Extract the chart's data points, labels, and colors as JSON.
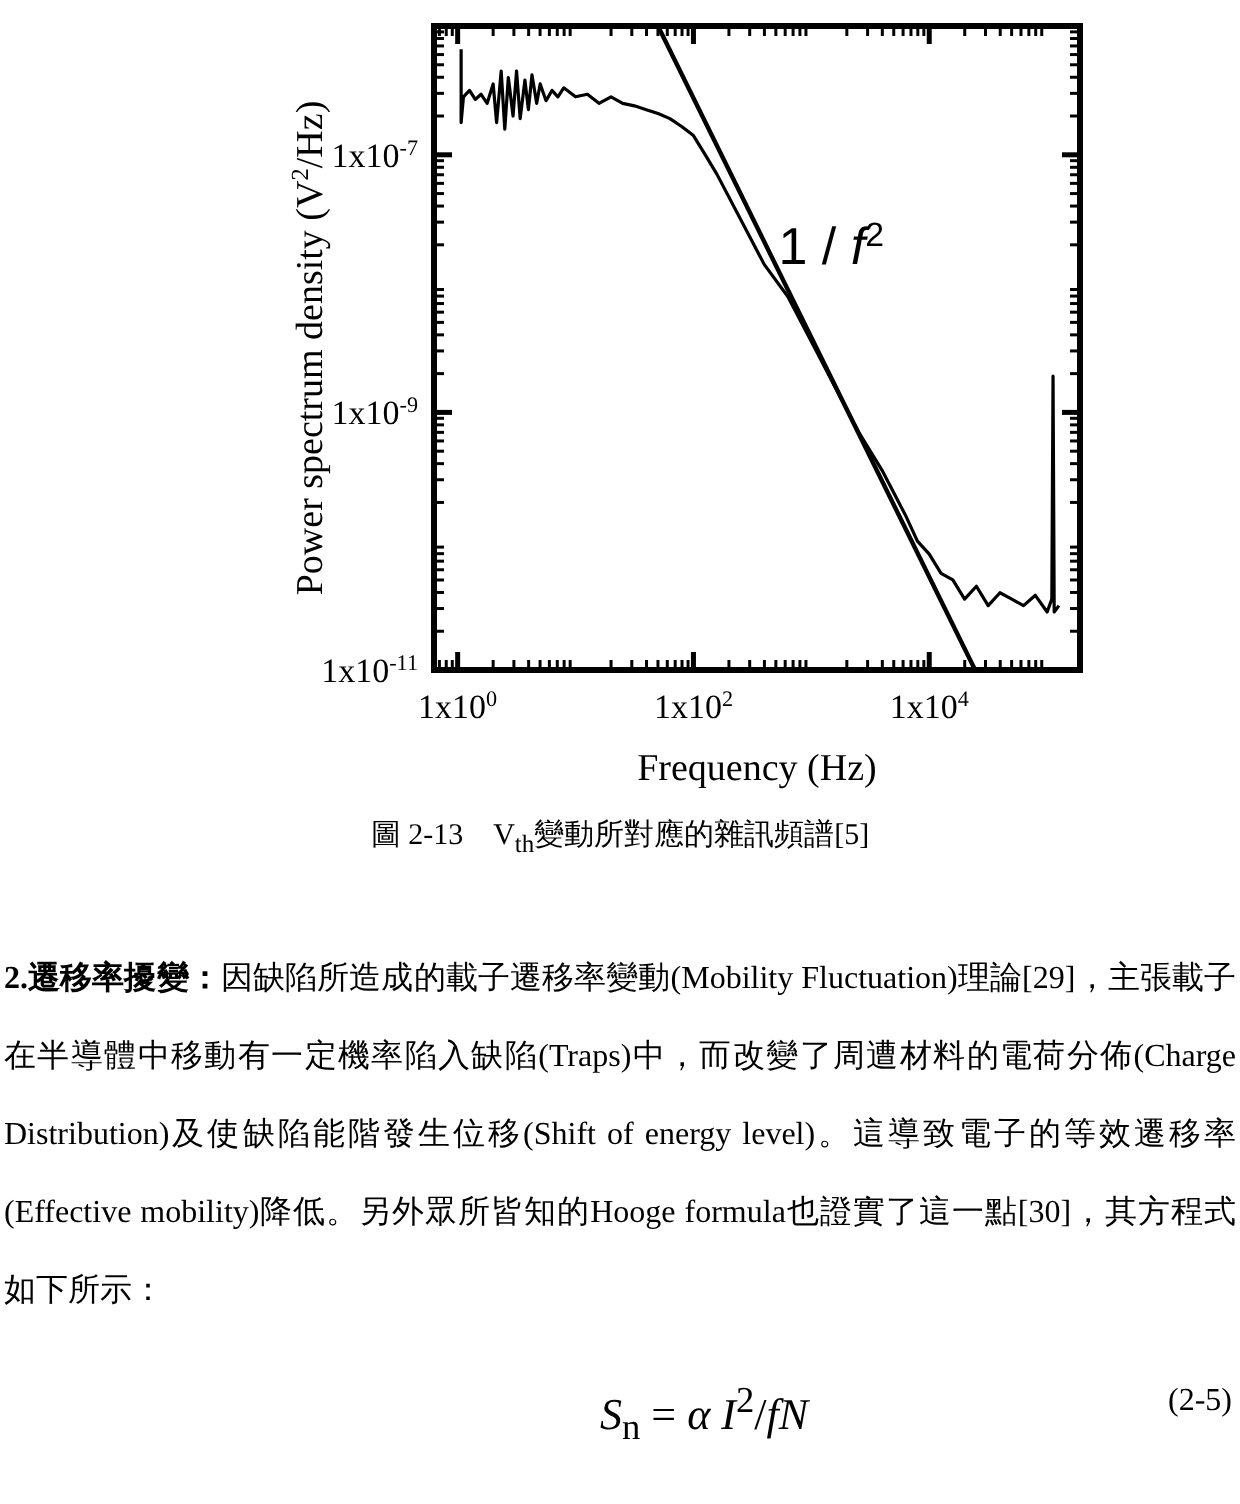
{
  "chart_data": {
    "type": "line",
    "xlabel": "Frequency (Hz)",
    "ylabel": "Power spectrum density (V$^{2}$/Hz)",
    "log": "xy",
    "xlim": [
      0.63,
      190000
    ],
    "ylim": [
      1e-11,
      1e-06
    ],
    "xticks": [
      {
        "value": 1,
        "label": "1x10$^{0}$"
      },
      {
        "value": 100,
        "label": "1x10$^{2}$"
      },
      {
        "value": 10000,
        "label": "1x10$^{4}$"
      }
    ],
    "yticks": [
      {
        "value": 1e-11,
        "label": "1x10$^{-11}$"
      },
      {
        "value": 1e-09,
        "label": "1x10$^{-9}$"
      },
      {
        "value": 1e-07,
        "label": "1x10$^{-7}$"
      }
    ],
    "series": [
      {
        "color": "#000000",
        "x": [
          1.07,
          1.07,
          1.12,
          1.26,
          1.41,
          1.58,
          1.78,
          2.0,
          2.14,
          2.34,
          2.51,
          2.69,
          2.95,
          3.16,
          3.39,
          3.72,
          3.98,
          4.27,
          4.68,
          5.01,
          5.62,
          6.31,
          7.08,
          7.94,
          10,
          12.6,
          15.8,
          20,
          25.1,
          31.6,
          39.8,
          50.1,
          63.1,
          79.4,
          100,
          126,
          158,
          251,
          398,
          631,
          1000,
          1585,
          2512,
          3981,
          6310,
          7943,
          10000,
          12590,
          15850,
          19950,
          25120,
          31620,
          39810,
          50120,
          63100,
          79430,
          100000,
          109600,
          112200,
          114800,
          125900
        ],
        "values": [
          6.6e-07,
          1.78e-07,
          2.82e-07,
          3.16e-07,
          2.69e-07,
          2.95e-07,
          2.51e-07,
          3.55e-07,
          1.78e-07,
          4.47e-07,
          1.58e-07,
          3.98e-07,
          2e-07,
          4.47e-07,
          1.91e-07,
          3.8e-07,
          2.24e-07,
          4.17e-07,
          2.51e-07,
          3.55e-07,
          2.63e-07,
          3.16e-07,
          2.82e-07,
          3.31e-07,
          2.82e-07,
          2.95e-07,
          2.51e-07,
          2.82e-07,
          2.51e-07,
          2.4e-07,
          2.24e-07,
          2.09e-07,
          1.91e-07,
          1.66e-07,
          1.41e-07,
          1e-07,
          7.08e-08,
          3.16e-08,
          1.41e-08,
          7.94e-09,
          3.55e-09,
          1.58e-09,
          7.08e-10,
          3.55e-10,
          1.58e-10,
          1e-10,
          7.94e-11,
          5.62e-11,
          5.01e-11,
          3.55e-11,
          4.47e-11,
          3.16e-11,
          3.98e-11,
          3.55e-11,
          3.16e-11,
          3.8e-11,
          2.82e-11,
          3.55e-11,
          1.91e-09,
          2.82e-11,
          3.16e-11
        ]
      },
      {
        "type": "line",
        "color": "#000000",
        "x": [
          50,
          24500
        ],
        "values": [
          1e-06,
          1e-11
        ]
      }
    ],
    "annotations": [
      "1 / *f*$^{2}$",
      "圖 2-13　V$_{th}$變動所對應的雜訊頻譜[5]",
      "**2.遷移率擾變：**因缺陷所造成的載子遷移率變動(Mobility Fluctuation)理論[29]，主張載子在半導體中移動有一定機率陷入缺陷(Traps)中，而改變了周遭材料的電荷分佈(Charge Distribution)及使缺陷能階發生位移(Shift of energy level)。這導致電子的等效遷移率(Effective mobility)降低。另外眾所皆知的Hooge formula也證實了這一點[30]，其方程式如下所示：",
      "*S*$_{n}$ = *α* *I*$^{2}$/*fN*",
      "(2-5)"
    ]
  }
}
